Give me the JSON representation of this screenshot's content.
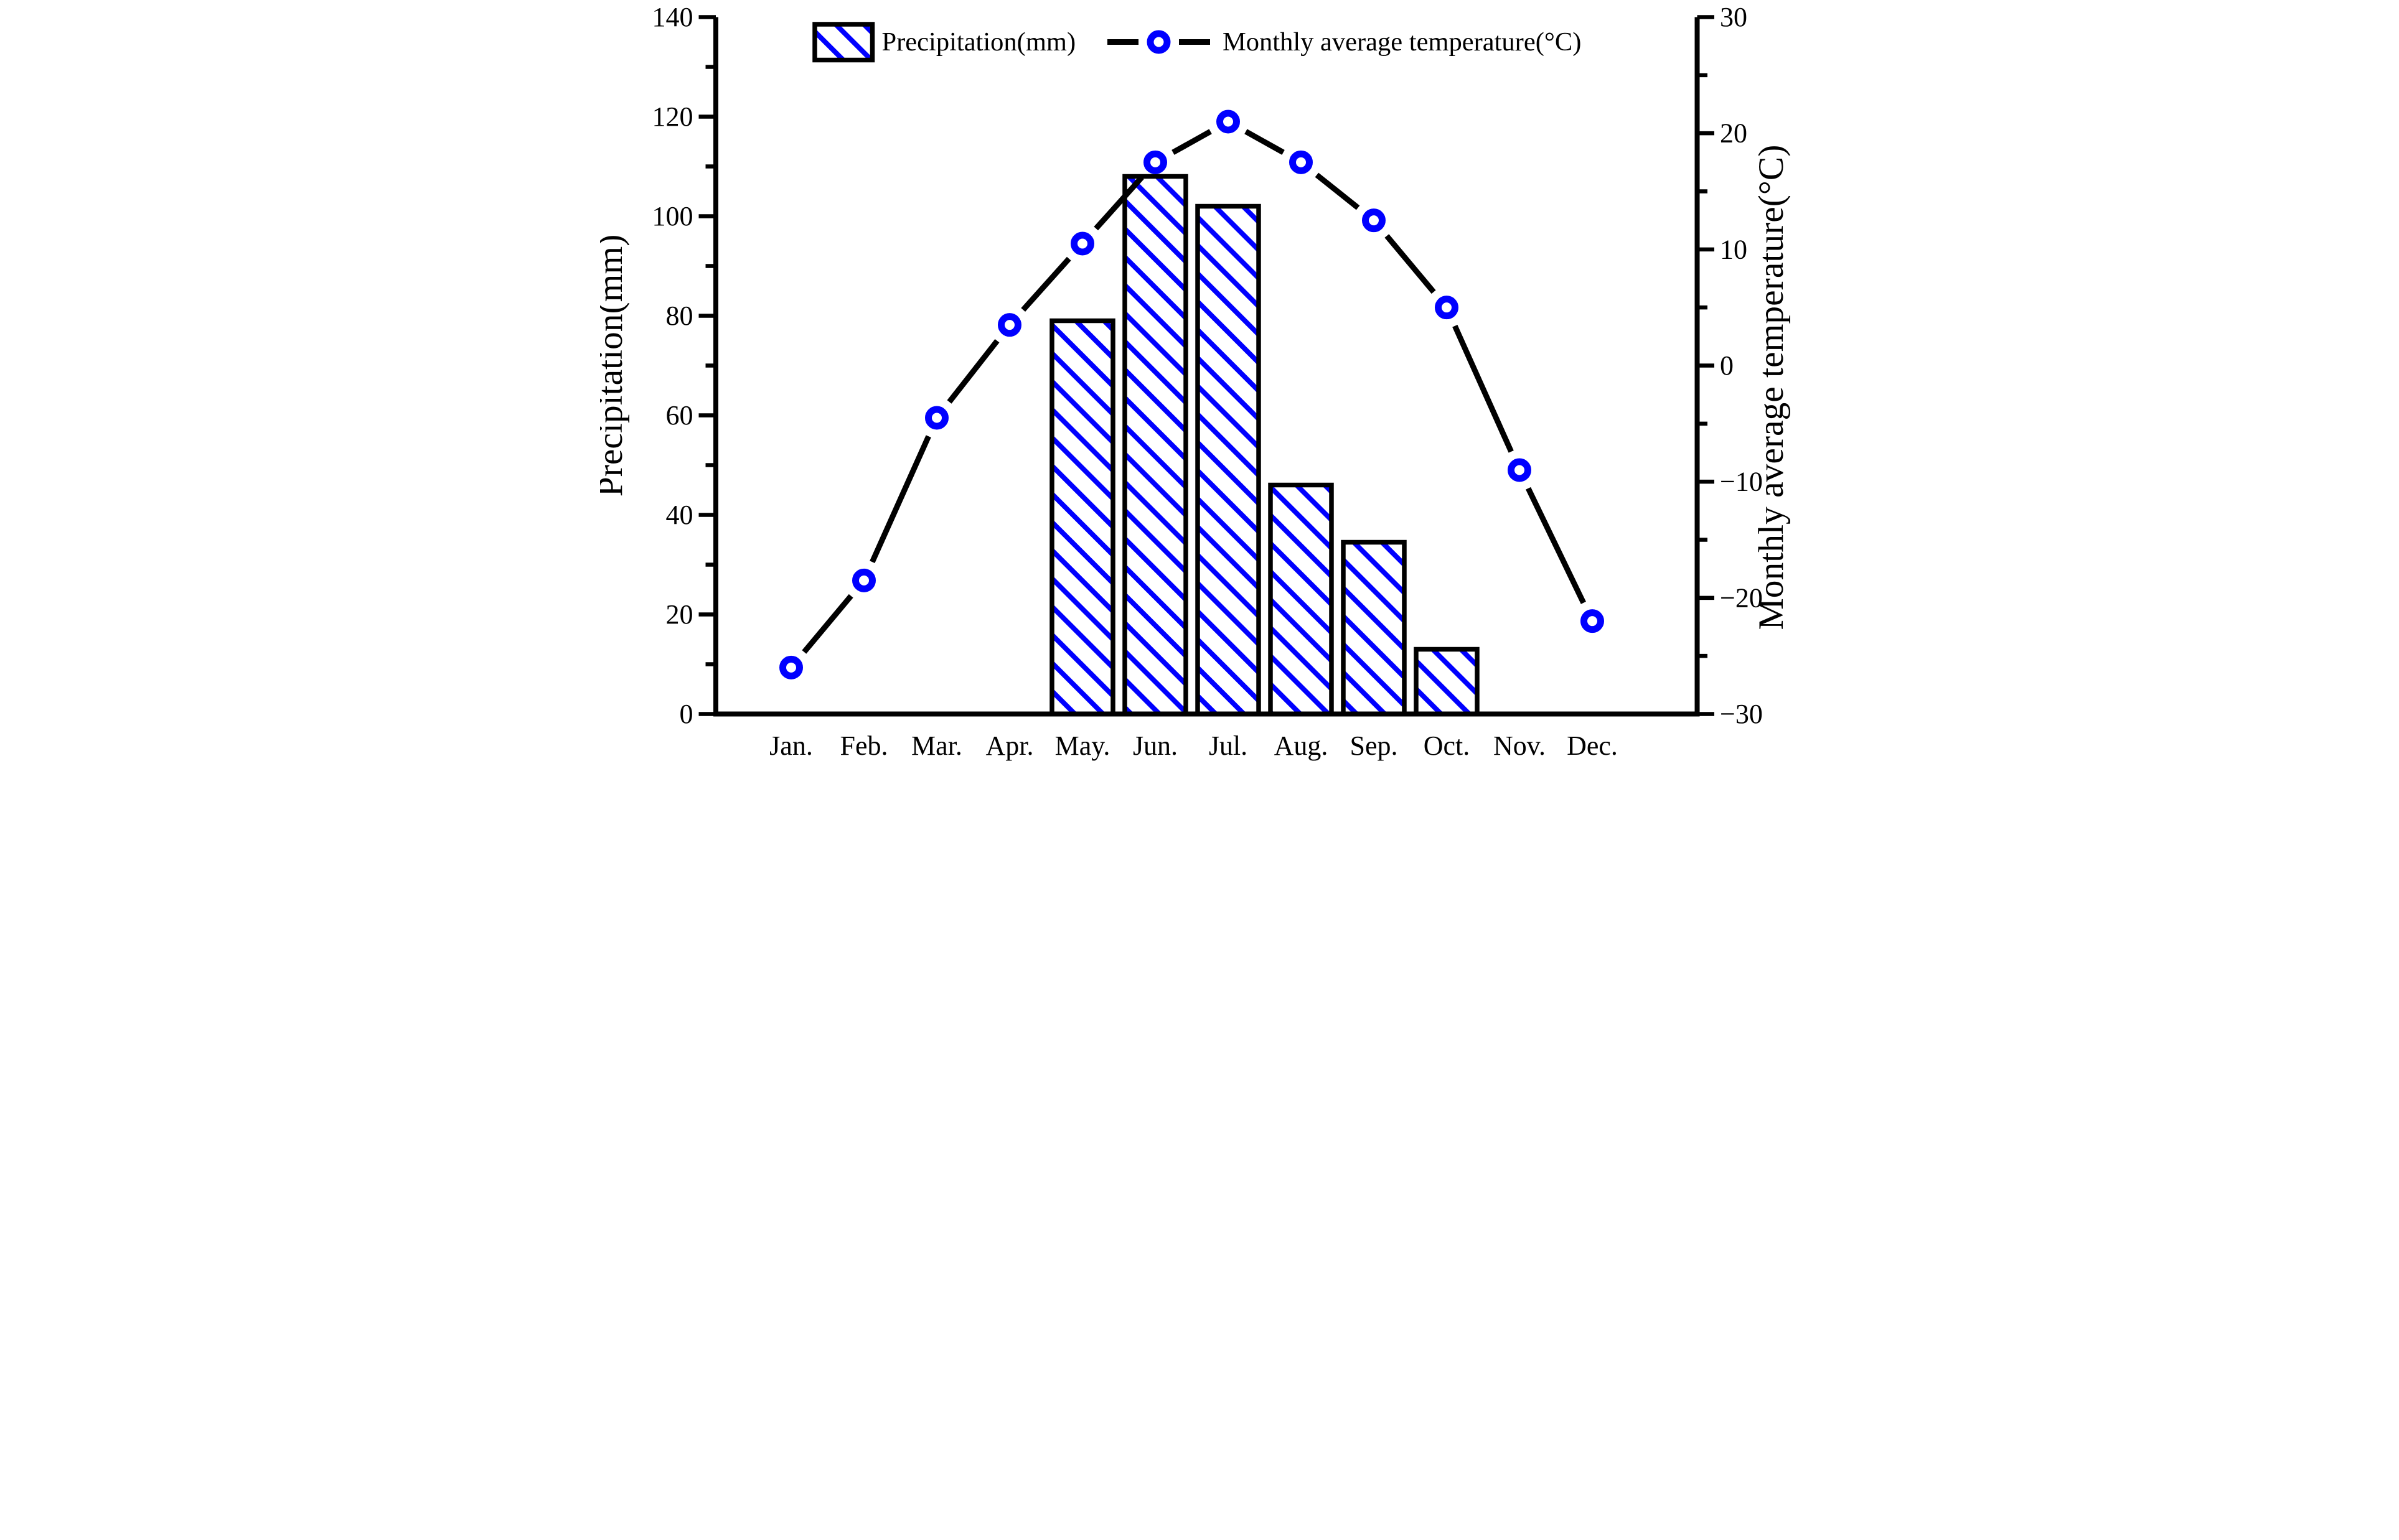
{
  "legend": {
    "precip_label": "Precipitation(mm)",
    "temp_label": "Monthly average temperature(°C)"
  },
  "colors": {
    "series_blue": "#0000ff",
    "line_black": "#000000",
    "text": "#000000",
    "background": "#ffffff"
  },
  "chart_data": [
    {
      "type": "bar",
      "name": "Precipitation(mm)",
      "axis": "left",
      "categories": [
        "Jan.",
        "Feb.",
        "Mar.",
        "Apr.",
        "May.",
        "Jun.",
        "Jul.",
        "Aug.",
        "Sep.",
        "Oct.",
        "Nov.",
        "Dec."
      ],
      "values": [
        0,
        0,
        0,
        0,
        79,
        108,
        102,
        46,
        34.5,
        13,
        0,
        0
      ],
      "ylabel": "Precipitation(mm)",
      "ylim": [
        0,
        140
      ],
      "ytick_major": 20,
      "ytick_minor": 10,
      "bar_fill": "white with blue diagonal hatch",
      "bar_border": "#000000",
      "legend_position": "top-center-inside",
      "grid": false
    },
    {
      "type": "line",
      "name": "Monthly average temperature(°C)",
      "axis": "right",
      "categories": [
        "Jan.",
        "Feb.",
        "Mar.",
        "Apr.",
        "May.",
        "Jun.",
        "Jul.",
        "Aug.",
        "Sep.",
        "Oct.",
        "Nov.",
        "Dec."
      ],
      "values": [
        -26,
        -18.5,
        -4.5,
        3.5,
        10.5,
        17.5,
        21,
        17.5,
        12.5,
        5,
        -9,
        -22
      ],
      "ylabel": "Monthly average temperature(°C)",
      "ylim": [
        -30,
        30
      ],
      "ytick_major": 10,
      "ytick_minor": 5,
      "line_color": "#000000",
      "marker": "open circle, blue ring with white center",
      "grid": false
    }
  ]
}
